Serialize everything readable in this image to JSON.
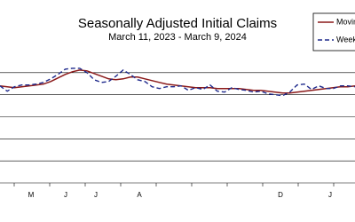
{
  "chart_data": {
    "type": "line",
    "title": "Seasonally Adjusted Initial Claims",
    "subtitle": "March 11, 2023 - March 9, 2024",
    "x_labels": [
      "M",
      "J",
      "J",
      "A",
      "D",
      "J"
    ],
    "ylim": [
      125000,
      275000
    ],
    "yticks": [
      125000,
      150000,
      175000,
      200000,
      225000,
      250000
    ],
    "grid": true,
    "series": [
      {
        "name": "Moving Average",
        "color": "#8b1a1a",
        "dash": false,
        "values": [
          235000,
          234000,
          233000,
          234000,
          235000,
          236000,
          237000,
          240000,
          244000,
          248000,
          251000,
          253000,
          252000,
          249000,
          246000,
          243000,
          242000,
          243000,
          245000,
          245000,
          243000,
          241000,
          239000,
          237000,
          236000,
          235000,
          234000,
          233000,
          233000,
          233000,
          232000,
          232000,
          232000,
          232000,
          231000,
          230000,
          230000,
          229000,
          228000,
          227000,
          227000,
          228000,
          229000,
          230000,
          231000,
          232000,
          233000,
          234000,
          234000,
          235000
        ]
      },
      {
        "name": "Weekly Claims",
        "color": "#1f2a8c",
        "dash": true,
        "values": [
          235000,
          229000,
          234000,
          236000,
          236000,
          237000,
          239000,
          243000,
          248000,
          254000,
          255000,
          255000,
          250000,
          242000,
          239000,
          240000,
          246000,
          253000,
          248000,
          242000,
          240000,
          234000,
          232000,
          234000,
          234000,
          235000,
          230000,
          233000,
          231000,
          236000,
          229000,
          228000,
          233000,
          231000,
          230000,
          228000,
          229000,
          226000,
          225000,
          224000,
          228000,
          236000,
          237000,
          231000,
          235000,
          232000,
          232000,
          235000,
          235000,
          234000
        ]
      }
    ]
  }
}
